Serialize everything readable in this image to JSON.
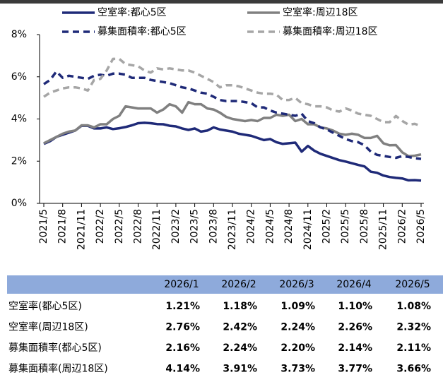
{
  "chart_data": {
    "type": "line",
    "categories": [
      "2021/5",
      null,
      null,
      "2021/8",
      null,
      null,
      "2021/11",
      null,
      null,
      "2022/2",
      null,
      null,
      "2022/5",
      null,
      null,
      "2022/8",
      null,
      null,
      "2022/11",
      null,
      null,
      "2023/2",
      null,
      null,
      "2023/5",
      null,
      null,
      "2023/8",
      null,
      null,
      "2023/11",
      null,
      null,
      "2024/2",
      null,
      null,
      "2024/5",
      null,
      null,
      "2024/8",
      null,
      null,
      "2024/11",
      null,
      null,
      "2025/2",
      null,
      null,
      "2025/5",
      null,
      null,
      "2025/8",
      null,
      null,
      "2025/11",
      null,
      null,
      "2026/2",
      null,
      null,
      "2026/5"
    ],
    "series": [
      {
        "name": "空室率:都心5区",
        "color": "#1f2a78",
        "dashed": false,
        "values": [
          2.82,
          2.95,
          3.15,
          3.25,
          3.35,
          3.45,
          3.68,
          3.68,
          3.55,
          3.55,
          3.6,
          3.52,
          3.56,
          3.62,
          3.7,
          3.8,
          3.82,
          3.8,
          3.76,
          3.75,
          3.68,
          3.65,
          3.55,
          3.48,
          3.55,
          3.4,
          3.45,
          3.6,
          3.5,
          3.45,
          3.4,
          3.3,
          3.25,
          3.2,
          3.1,
          3.0,
          3.05,
          2.9,
          2.82,
          2.85,
          2.88,
          2.45,
          2.72,
          2.5,
          2.35,
          2.25,
          2.15,
          2.05,
          1.98,
          1.9,
          1.82,
          1.75,
          1.5,
          1.45,
          1.32,
          1.25,
          1.21,
          1.18,
          1.09,
          1.1,
          1.08
        ]
      },
      {
        "name": "空室率:周辺18区",
        "color": "#808080",
        "dashed": false,
        "values": [
          2.85,
          3.0,
          3.15,
          3.3,
          3.4,
          3.45,
          3.7,
          3.7,
          3.6,
          3.75,
          3.75,
          4.0,
          4.15,
          4.6,
          4.55,
          4.5,
          4.5,
          4.5,
          4.3,
          4.45,
          4.7,
          4.6,
          4.3,
          4.8,
          4.7,
          4.7,
          4.5,
          4.45,
          4.3,
          4.1,
          4.0,
          3.95,
          3.9,
          3.95,
          3.9,
          4.05,
          4.05,
          4.2,
          4.15,
          4.2,
          3.9,
          4.0,
          3.75,
          3.75,
          3.6,
          3.55,
          3.45,
          3.3,
          3.25,
          3.3,
          3.25,
          3.1,
          3.1,
          3.2,
          2.85,
          2.75,
          2.76,
          2.42,
          2.24,
          2.26,
          2.32
        ]
      },
      {
        "name": "募集面積率:都心5区",
        "color": "#1f2a78",
        "dashed": true,
        "values": [
          5.65,
          5.85,
          6.25,
          5.95,
          6.05,
          6.0,
          5.95,
          5.9,
          6.05,
          6.1,
          6.05,
          6.15,
          6.15,
          6.1,
          5.95,
          5.95,
          5.95,
          5.85,
          5.8,
          5.75,
          5.7,
          5.6,
          5.5,
          5.45,
          5.35,
          5.25,
          5.2,
          5.05,
          4.9,
          4.85,
          4.85,
          4.85,
          4.8,
          4.75,
          4.55,
          4.55,
          4.4,
          4.3,
          4.25,
          4.2,
          4.15,
          4.25,
          3.9,
          3.8,
          3.6,
          3.5,
          3.35,
          3.2,
          3.05,
          2.95,
          2.9,
          2.75,
          2.45,
          2.3,
          2.25,
          2.2,
          2.16,
          2.24,
          2.2,
          2.14,
          2.11
        ]
      },
      {
        "name": "募集面積率:周辺18区",
        "color": "#a6a6a6",
        "dashed": true,
        "values": [
          5.05,
          5.25,
          5.35,
          5.45,
          5.5,
          5.5,
          5.45,
          5.35,
          5.85,
          5.9,
          6.3,
          6.85,
          6.85,
          6.6,
          6.55,
          6.5,
          6.3,
          6.2,
          6.4,
          6.35,
          6.4,
          6.35,
          6.3,
          6.3,
          6.2,
          6.05,
          5.9,
          5.75,
          5.5,
          5.6,
          5.6,
          5.55,
          5.45,
          5.35,
          5.25,
          5.2,
          5.2,
          5.15,
          4.9,
          4.9,
          5.0,
          4.75,
          4.7,
          4.6,
          4.6,
          4.55,
          4.4,
          4.35,
          4.5,
          4.4,
          4.25,
          4.2,
          4.15,
          4.0,
          3.85,
          3.85,
          4.14,
          3.91,
          3.73,
          3.77,
          3.66
        ]
      }
    ],
    "ylim": [
      0,
      8
    ],
    "yticks": [
      {
        "value": 0,
        "label": "0%"
      },
      {
        "value": 2,
        "label": "2%"
      },
      {
        "value": 4,
        "label": "4%"
      },
      {
        "value": 6,
        "label": "6%"
      },
      {
        "value": 8,
        "label": "8%"
      }
    ]
  },
  "table": {
    "header": [
      "2026/1",
      "2026/2",
      "2026/3",
      "2026/4",
      "2026/5"
    ],
    "rows": [
      {
        "label": "空室率(都心5区)",
        "values": [
          "1.21%",
          "1.18%",
          "1.09%",
          "1.10%",
          "1.08%"
        ]
      },
      {
        "label": "空室率(周辺18区)",
        "values": [
          "2.76%",
          "2.42%",
          "2.24%",
          "2.26%",
          "2.32%"
        ]
      },
      {
        "label": "募集面積率(都心5区)",
        "values": [
          "2.16%",
          "2.24%",
          "2.20%",
          "2.14%",
          "2.11%"
        ]
      },
      {
        "label": "募集面積率(周辺18区)",
        "values": [
          "4.14%",
          "3.91%",
          "3.73%",
          "3.77%",
          "3.66%"
        ]
      }
    ]
  }
}
